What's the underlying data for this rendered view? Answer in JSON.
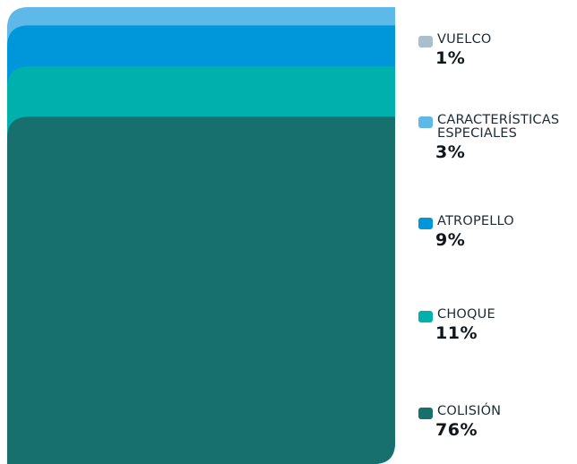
{
  "chart_data": {
    "type": "area",
    "title": "",
    "series": [
      {
        "name": "COLISIÓN",
        "value": 76,
        "value_label": "76%",
        "color": "#17706e"
      },
      {
        "name": "CHOQUE",
        "value": 11,
        "value_label": "11%",
        "color": "#00b0ad"
      },
      {
        "name": "ATROPELLO",
        "value": 9,
        "value_label": "9%",
        "color": "#0096da"
      },
      {
        "name": "CARACTERÍSTICAS\nESPECIALES",
        "value": 3,
        "value_label": "3%",
        "color": "#5eb8e8"
      },
      {
        "name": "VUELCO",
        "value": 1,
        "value_label": "1%",
        "color": "#a9bfcd"
      }
    ],
    "legend_position": "right",
    "grid": false
  }
}
